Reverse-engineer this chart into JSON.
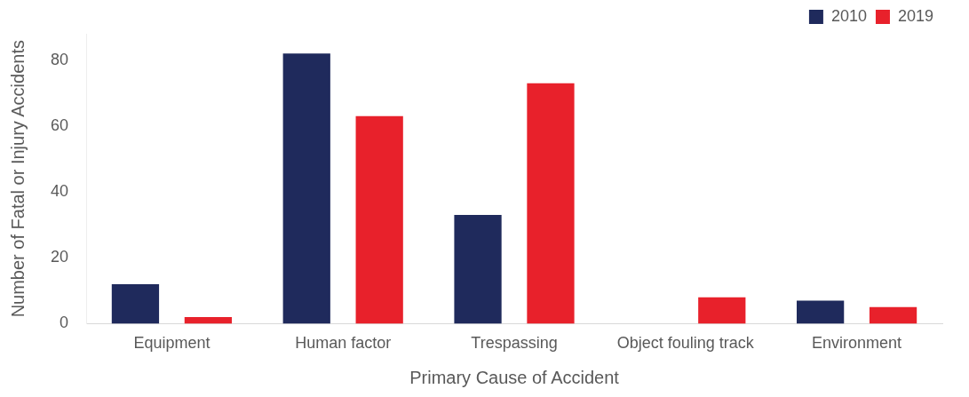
{
  "chart_data": {
    "type": "bar",
    "xlabel": "Primary Cause of Accident",
    "ylabel": "Number of Fatal or Injury Accidents",
    "categories": [
      "Equipment",
      "Human factor",
      "Trespassing",
      "Object fouling track",
      "Environment"
    ],
    "series": [
      {
        "name": "2010",
        "color": "#1f2a5c",
        "values": [
          12,
          82,
          33,
          0,
          7
        ]
      },
      {
        "name": "2019",
        "color": "#e8212b",
        "values": [
          2,
          63,
          73,
          8,
          5
        ]
      }
    ],
    "ylim": [
      0,
      88
    ],
    "yticks": [
      0,
      20,
      40,
      60,
      80
    ],
    "grid": false,
    "legend": "top right"
  }
}
